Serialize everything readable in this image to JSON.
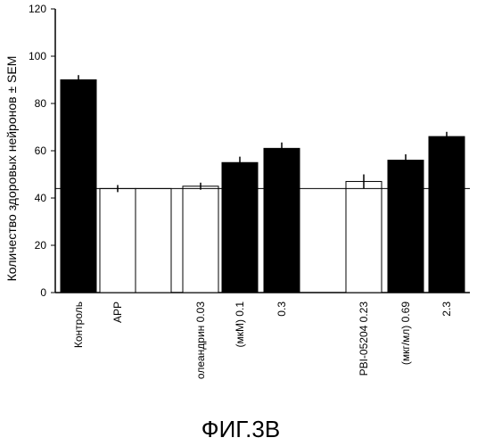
{
  "chart_data": {
    "type": "bar",
    "ylabel": "Количество здоровых нейронов ± SEM",
    "ylim": [
      0,
      120
    ],
    "yticks": [
      0,
      20,
      40,
      60,
      80,
      100,
      120
    ],
    "reference_line": 44,
    "bars": [
      {
        "label": "Контроль",
        "value": 90,
        "error": 2,
        "fill": "black"
      },
      {
        "label": "APP",
        "value": 44,
        "error": 1.5,
        "fill": "white"
      },
      {
        "label": "",
        "value": 44,
        "error": 0,
        "fill": "white"
      },
      {
        "label": "олеандрин 0.03",
        "value": 45,
        "error": 1.5,
        "fill": "white"
      },
      {
        "label": "(мкМ)   0.1",
        "value": 55,
        "error": 2.5,
        "fill": "black"
      },
      {
        "label": "0.3",
        "value": 61,
        "error": 2.5,
        "fill": "black"
      },
      {
        "label": "PBI-05204   0.23",
        "value": 47,
        "error": 3,
        "fill": "white"
      },
      {
        "label": "(мкг/мл)   0.69",
        "value": 56,
        "error": 2.5,
        "fill": "black"
      },
      {
        "label": "2.3",
        "value": 66,
        "error": 2,
        "fill": "black"
      }
    ]
  },
  "caption": "ФИГ.3В"
}
